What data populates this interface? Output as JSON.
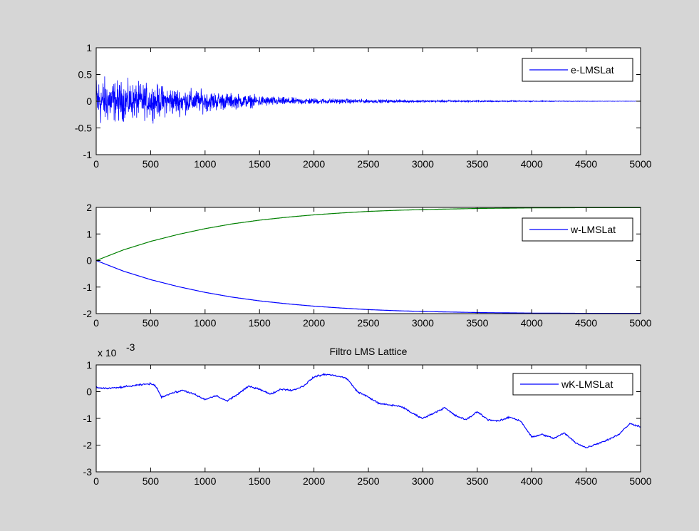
{
  "figure": {
    "background": "#d6d6d6"
  },
  "chart_data": [
    {
      "type": "line",
      "name": "error",
      "xlim": [
        0,
        5000
      ],
      "ylim": [
        -1,
        1
      ],
      "xticks": [
        "0",
        "500",
        "1000",
        "1500",
        "2000",
        "2500",
        "3000",
        "3500",
        "4000",
        "4500",
        "5000"
      ],
      "xtick_values": [
        0,
        500,
        1000,
        1500,
        2000,
        2500,
        3000,
        3500,
        4000,
        4500,
        5000
      ],
      "yticks": [
        "-1",
        "-0.5",
        "0",
        "0.5",
        "1"
      ],
      "ytick_values": [
        -1,
        -0.5,
        0,
        0.5,
        1
      ],
      "legend": [
        "e-LMSLat"
      ],
      "legend_position": "top-right",
      "grid": false,
      "series": [
        {
          "name": "e-LMSLat",
          "color": "#0000ff",
          "style": "noise-envelope",
          "envelope": {
            "x": [
              0,
              100,
              250,
              500,
              750,
              1000,
              1250,
              1500,
              1750,
              2000,
              2500,
              3000,
              3500,
              4000,
              4500,
              5000
            ],
            "amplitude": [
              0.7,
              0.6,
              0.5,
              0.45,
              0.35,
              0.28,
              0.2,
              0.15,
              0.1,
              0.08,
              0.05,
              0.03,
              0.02,
              0.012,
              0.005,
              0.003
            ]
          }
        }
      ]
    },
    {
      "type": "line",
      "name": "weights",
      "xlim": [
        0,
        5000
      ],
      "ylim": [
        -2,
        2
      ],
      "xticks": [
        "0",
        "500",
        "1000",
        "1500",
        "2000",
        "2500",
        "3000",
        "3500",
        "4000",
        "4500",
        "5000"
      ],
      "xtick_values": [
        0,
        500,
        1000,
        1500,
        2000,
        2500,
        3000,
        3500,
        4000,
        4500,
        5000
      ],
      "yticks": [
        "-2",
        "-1",
        "0",
        "1",
        "2"
      ],
      "ytick_values": [
        -2,
        -1,
        0,
        1,
        2
      ],
      "legend": [
        "w-LMSLat"
      ],
      "legend_position": "top-right",
      "grid": false,
      "series": [
        {
          "name": "w-LMSLat",
          "color": "#0000ff",
          "x": [
            0,
            250,
            500,
            750,
            1000,
            1250,
            1500,
            1750,
            2000,
            2250,
            2500,
            2750,
            3000,
            3250,
            3500,
            3750,
            4000,
            4250,
            4500,
            4750,
            5000
          ],
          "values": [
            0,
            -0.4,
            -0.72,
            -0.98,
            -1.2,
            -1.38,
            -1.52,
            -1.63,
            -1.72,
            -1.79,
            -1.85,
            -1.89,
            -1.92,
            -1.94,
            -1.96,
            -1.97,
            -1.98,
            -1.985,
            -1.99,
            -1.99,
            -1.99
          ]
        },
        {
          "color": "#008000",
          "x": [
            0,
            250,
            500,
            750,
            1000,
            1250,
            1500,
            1750,
            2000,
            2250,
            2500,
            2750,
            3000,
            3250,
            3500,
            3750,
            4000,
            4250,
            4500,
            4750,
            5000
          ],
          "values": [
            0,
            0.4,
            0.72,
            0.98,
            1.2,
            1.38,
            1.52,
            1.63,
            1.72,
            1.79,
            1.85,
            1.89,
            1.92,
            1.94,
            1.96,
            1.97,
            1.98,
            1.985,
            1.99,
            1.99,
            1.99
          ]
        }
      ]
    },
    {
      "type": "line",
      "name": "reflection",
      "title": "Filtro LMS Lattice",
      "exponent_label": "x 10",
      "exponent_power": "-3",
      "xlim": [
        0,
        5000
      ],
      "ylim": [
        -3,
        1
      ],
      "xticks": [
        "0",
        "500",
        "1000",
        "1500",
        "2000",
        "2500",
        "3000",
        "3500",
        "4000",
        "4500",
        "5000"
      ],
      "xtick_values": [
        0,
        500,
        1000,
        1500,
        2000,
        2500,
        3000,
        3500,
        4000,
        4500,
        5000
      ],
      "yticks": [
        "-3",
        "-2",
        "-1",
        "0",
        "1"
      ],
      "ytick_values": [
        -3,
        -2,
        -1,
        0,
        1
      ],
      "legend": [
        "wK-LMSLat"
      ],
      "legend_position": "top-right",
      "grid": false,
      "series": [
        {
          "name": "wK-LMSLat",
          "color": "#0000ff",
          "x": [
            0,
            100,
            200,
            300,
            400,
            500,
            550,
            600,
            700,
            800,
            900,
            1000,
            1100,
            1200,
            1300,
            1400,
            1500,
            1600,
            1700,
            1800,
            1900,
            2000,
            2100,
            2200,
            2300,
            2400,
            2500,
            2600,
            2700,
            2800,
            2900,
            3000,
            3100,
            3200,
            3300,
            3400,
            3500,
            3600,
            3700,
            3800,
            3900,
            4000,
            4100,
            4200,
            4300,
            4400,
            4500,
            4600,
            4700,
            4800,
            4900,
            5000
          ],
          "values": [
            0.15,
            0.12,
            0.15,
            0.2,
            0.25,
            0.3,
            0.2,
            -0.2,
            -0.05,
            0.05,
            -0.1,
            -0.3,
            -0.15,
            -0.35,
            -0.1,
            0.2,
            0.1,
            -0.1,
            0.1,
            0.05,
            0.2,
            0.55,
            0.65,
            0.6,
            0.5,
            0.0,
            -0.2,
            -0.45,
            -0.5,
            -0.55,
            -0.8,
            -1.0,
            -0.8,
            -0.6,
            -0.9,
            -1.05,
            -0.75,
            -1.05,
            -1.1,
            -0.95,
            -1.1,
            -1.7,
            -1.6,
            -1.75,
            -1.55,
            -1.9,
            -2.1,
            -1.95,
            -1.8,
            -1.6,
            -1.2,
            -1.3
          ]
        }
      ]
    }
  ]
}
